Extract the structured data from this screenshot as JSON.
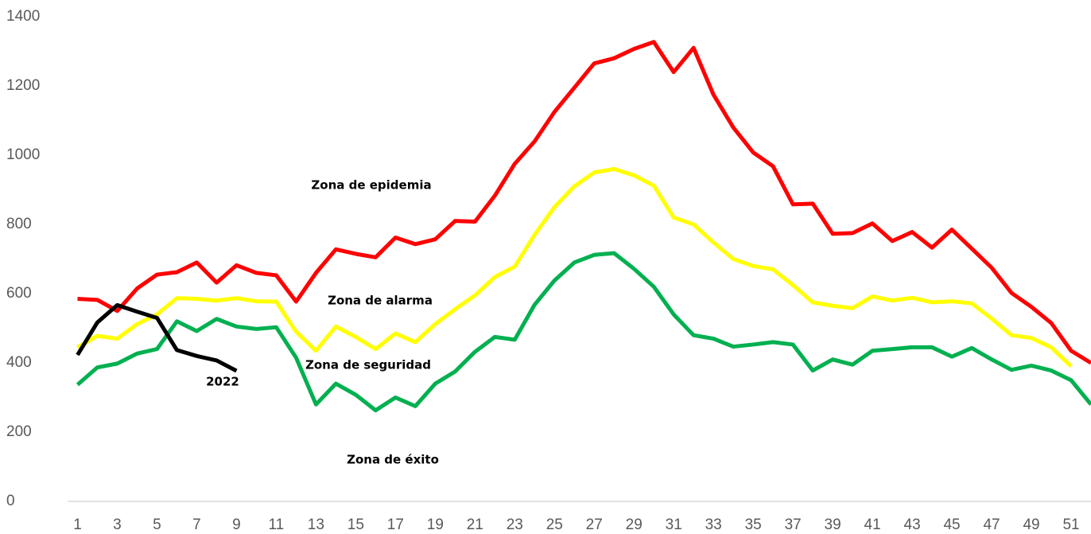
{
  "chart_data": {
    "type": "line",
    "x": [
      1,
      2,
      3,
      4,
      5,
      6,
      7,
      8,
      9,
      10,
      11,
      12,
      13,
      14,
      15,
      16,
      17,
      18,
      19,
      20,
      21,
      22,
      23,
      24,
      25,
      26,
      27,
      28,
      29,
      30,
      31,
      32,
      33,
      34,
      35,
      36,
      37,
      38,
      39,
      40,
      41,
      42,
      43,
      44,
      45,
      46,
      47,
      48,
      49,
      50,
      51,
      52
    ],
    "xlim": [
      0.5,
      52
    ],
    "xticks": [
      1,
      3,
      5,
      7,
      9,
      11,
      13,
      15,
      17,
      19,
      21,
      23,
      25,
      27,
      29,
      31,
      33,
      35,
      37,
      39,
      41,
      43,
      45,
      47,
      49,
      51
    ],
    "ylim": [
      0,
      1400
    ],
    "yticks": [
      0,
      200,
      400,
      600,
      800,
      1000,
      1200,
      1400
    ],
    "grid": false,
    "series": [
      {
        "color": "#ff0000",
        "values": [
          585,
          582,
          550,
          615,
          655,
          662,
          690,
          632,
          682,
          660,
          653,
          577,
          660,
          728,
          715,
          705,
          762,
          743,
          757,
          810,
          808,
          883,
          975,
          1040,
          1125,
          1195,
          1265,
          1280,
          1307,
          1327,
          1240,
          1310,
          1175,
          1080,
          1008,
          968,
          858,
          860,
          773,
          775,
          803,
          752,
          778,
          733,
          785,
          730,
          675,
          602,
          562,
          515,
          435,
          400
        ]
      },
      {
        "color": "#ffff00",
        "values": [
          445,
          478,
          470,
          512,
          540,
          587,
          585,
          580,
          587,
          578,
          577,
          490,
          435,
          505,
          475,
          440,
          485,
          460,
          512,
          555,
          595,
          648,
          678,
          770,
          850,
          910,
          950,
          960,
          942,
          912,
          820,
          800,
          748,
          700,
          680,
          670,
          625,
          575,
          565,
          558,
          592,
          580,
          588,
          575,
          578,
          572,
          528,
          480,
          472,
          445,
          390,
          null
        ]
      },
      {
        "color": "#00b050",
        "values": [
          337,
          387,
          398,
          427,
          440,
          520,
          492,
          527,
          505,
          498,
          503,
          415,
          280,
          340,
          308,
          263,
          300,
          275,
          340,
          375,
          432,
          475,
          467,
          568,
          638,
          690,
          712,
          717,
          672,
          620,
          540,
          480,
          470,
          447,
          453,
          460,
          453,
          378,
          410,
          395,
          435,
          440,
          445,
          445,
          418,
          443,
          410,
          380,
          392,
          378,
          350,
          280
        ]
      },
      {
        "name": "2022",
        "color": "#000000",
        "values": [
          423,
          517,
          567,
          548,
          530,
          437,
          420,
          407,
          377,
          null,
          null,
          null,
          null,
          null,
          null,
          null,
          null,
          null,
          null,
          null,
          null,
          null,
          null,
          null,
          null,
          null,
          null,
          null,
          null,
          null,
          null,
          null,
          null,
          null,
          null,
          null,
          null,
          null,
          null,
          null,
          null,
          null,
          null,
          null,
          null,
          null,
          null,
          null,
          null,
          null,
          null,
          null
        ]
      }
    ],
    "annotations": [
      "Zona de epidemia",
      "Zona de alarma",
      "Zona de seguridad",
      "Zona de éxito"
    ]
  }
}
